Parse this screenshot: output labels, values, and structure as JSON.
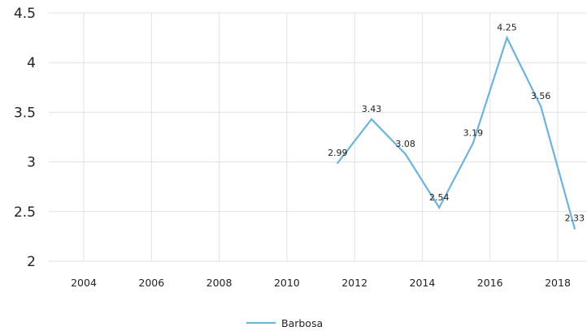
{
  "chart_data": {
    "type": "line",
    "x": [
      2011.5,
      2012.5,
      2013.5,
      2014.5,
      2015.5,
      2016.5,
      2017.5,
      2018.5
    ],
    "series": [
      {
        "name": "Barbosa",
        "color": "#6fb3d9",
        "values": [
          2.99,
          3.43,
          3.08,
          2.54,
          3.19,
          4.25,
          3.56,
          2.33
        ]
      }
    ],
    "data_labels": [
      "2.99",
      "3.43",
      "3.08",
      "2.54",
      "3.19",
      "4.25",
      "3.56",
      "2.33"
    ],
    "x_ticks": [
      "2004",
      "2006",
      "2008",
      "2010",
      "2012",
      "2014",
      "2016",
      "2018"
    ],
    "y_ticks": [
      "2",
      "2.5",
      "3",
      "3.5",
      "4",
      "4.5"
    ],
    "xlim": [
      2003,
      2018.8
    ],
    "ylim": [
      2,
      4.5
    ],
    "grid": true,
    "legend": "bottom-center",
    "title": "",
    "xlabel": "",
    "ylabel": ""
  }
}
